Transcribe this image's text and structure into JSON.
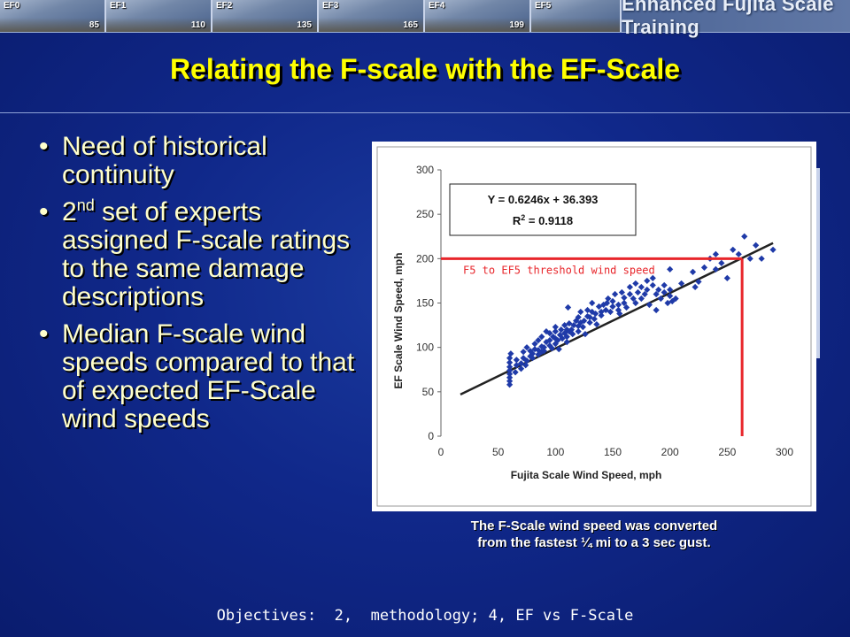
{
  "banner": {
    "tiles": [
      {
        "label": "EF0",
        "value": "85"
      },
      {
        "label": "EF1",
        "value": "110"
      },
      {
        "label": "EF2",
        "value": "135"
      },
      {
        "label": "EF3",
        "value": "165"
      },
      {
        "label": "EF4",
        "value": "199"
      },
      {
        "label": "EF5",
        "value": ""
      }
    ],
    "title": "Enhanced Fujita Scale Training"
  },
  "slide": {
    "title": "Relating the F-scale with the EF-Scale",
    "bullet_glyph": "•",
    "bullets": [
      {
        "text": "Need of historical continuity"
      },
      {
        "pre": "2",
        "sup": "nd",
        "post": " set of experts assigned F-scale ratings to the same damage descriptions"
      },
      {
        "text": "Median F-scale wind speeds compared to that of expected EF-Scale wind speeds"
      }
    ],
    "caption_line1": "The F-Scale wind speed was converted",
    "caption_line2": "from the fastest ¼ mi to a 3 sec gust.",
    "footer": "Objectives:  2,  methodology; 4, EF vs F-Scale"
  },
  "colors": {
    "title": "#ffff00",
    "bullet_text": "#ffffcc",
    "points": "#1f3aa8",
    "threshold": "#e8262b",
    "fit_line": "#222222"
  },
  "chart_data": {
    "type": "scatter",
    "xlabel": "Fujita Scale Wind Speed, mph",
    "ylabel": "EF Scale Wind Speed, mph",
    "xlim": [
      0,
      300
    ],
    "ylim": [
      0,
      300
    ],
    "xticks": [
      0,
      50,
      100,
      150,
      200,
      250,
      300
    ],
    "yticks": [
      0,
      50,
      100,
      150,
      200,
      250,
      300
    ],
    "grid": false,
    "equation": "Y = 0.6246x + 36.393",
    "r2_label": "R",
    "r2_sup": "2",
    "r2_value": " = 0.9118",
    "fit": {
      "slope": 0.6246,
      "intercept": 36.393,
      "x_range": [
        17,
        290
      ]
    },
    "threshold": {
      "label": "F5 to EF5 threshold wind speed",
      "x": 263,
      "y": 200
    },
    "points": [
      [
        60,
        58
      ],
      [
        60,
        62
      ],
      [
        60,
        66
      ],
      [
        60,
        70
      ],
      [
        60,
        74
      ],
      [
        60,
        78
      ],
      [
        60,
        83
      ],
      [
        60,
        88
      ],
      [
        61,
        93
      ],
      [
        65,
        72
      ],
      [
        66,
        80
      ],
      [
        66,
        86
      ],
      [
        70,
        76
      ],
      [
        70,
        82
      ],
      [
        72,
        88
      ],
      [
        72,
        95
      ],
      [
        74,
        80
      ],
      [
        75,
        85
      ],
      [
        75,
        100
      ],
      [
        78,
        90
      ],
      [
        78,
        96
      ],
      [
        80,
        88
      ],
      [
        80,
        93
      ],
      [
        82,
        98
      ],
      [
        82,
        104
      ],
      [
        85,
        92
      ],
      [
        85,
        97
      ],
      [
        85,
        108
      ],
      [
        88,
        95
      ],
      [
        88,
        101
      ],
      [
        88,
        112
      ],
      [
        90,
        100
      ],
      [
        90,
        96
      ],
      [
        92,
        106
      ],
      [
        92,
        118
      ],
      [
        95,
        102
      ],
      [
        95,
        108
      ],
      [
        95,
        116
      ],
      [
        97,
        99
      ],
      [
        98,
        112
      ],
      [
        100,
        104
      ],
      [
        100,
        110
      ],
      [
        100,
        118
      ],
      [
        100,
        123
      ],
      [
        102,
        108
      ],
      [
        103,
        98
      ],
      [
        104,
        114
      ],
      [
        105,
        120
      ],
      [
        106,
        110
      ],
      [
        108,
        116
      ],
      [
        108,
        125
      ],
      [
        110,
        106
      ],
      [
        110,
        112
      ],
      [
        110,
        120
      ],
      [
        111,
        145
      ],
      [
        112,
        118
      ],
      [
        112,
        127
      ],
      [
        114,
        120
      ],
      [
        115,
        115
      ],
      [
        116,
        125
      ],
      [
        118,
        130
      ],
      [
        120,
        118
      ],
      [
        120,
        124
      ],
      [
        120,
        134
      ],
      [
        122,
        128
      ],
      [
        122,
        140
      ],
      [
        124,
        123
      ],
      [
        125,
        130
      ],
      [
        126,
        115
      ],
      [
        128,
        135
      ],
      [
        128,
        142
      ],
      [
        130,
        128
      ],
      [
        130,
        134
      ],
      [
        132,
        140
      ],
      [
        132,
        150
      ],
      [
        134,
        132
      ],
      [
        135,
        138
      ],
      [
        136,
        126
      ],
      [
        138,
        146
      ],
      [
        140,
        140
      ],
      [
        140,
        136
      ],
      [
        142,
        148
      ],
      [
        144,
        142
      ],
      [
        145,
        150
      ],
      [
        146,
        155
      ],
      [
        148,
        140
      ],
      [
        150,
        146
      ],
      [
        150,
        152
      ],
      [
        152,
        160
      ],
      [
        155,
        148
      ],
      [
        155,
        142
      ],
      [
        156,
        138
      ],
      [
        158,
        162
      ],
      [
        160,
        150
      ],
      [
        160,
        156
      ],
      [
        162,
        145
      ],
      [
        165,
        160
      ],
      [
        165,
        168
      ],
      [
        168,
        155
      ],
      [
        170,
        150
      ],
      [
        170,
        172
      ],
      [
        172,
        162
      ],
      [
        175,
        155
      ],
      [
        175,
        168
      ],
      [
        178,
        160
      ],
      [
        180,
        165
      ],
      [
        180,
        175
      ],
      [
        182,
        148
      ],
      [
        185,
        170
      ],
      [
        185,
        178
      ],
      [
        188,
        142
      ],
      [
        188,
        160
      ],
      [
        190,
        165
      ],
      [
        192,
        155
      ],
      [
        195,
        162
      ],
      [
        195,
        170
      ],
      [
        198,
        150
      ],
      [
        200,
        158
      ],
      [
        200,
        165
      ],
      [
        200,
        188
      ],
      [
        202,
        152
      ],
      [
        205,
        155
      ],
      [
        210,
        172
      ],
      [
        220,
        185
      ],
      [
        222,
        168
      ],
      [
        225,
        174
      ],
      [
        230,
        190
      ],
      [
        235,
        200
      ],
      [
        240,
        205
      ],
      [
        240,
        188
      ],
      [
        245,
        195
      ],
      [
        250,
        178
      ],
      [
        255,
        210
      ],
      [
        260,
        205
      ],
      [
        265,
        225
      ],
      [
        270,
        200
      ],
      [
        275,
        215
      ],
      [
        280,
        200
      ],
      [
        290,
        210
      ]
    ]
  }
}
